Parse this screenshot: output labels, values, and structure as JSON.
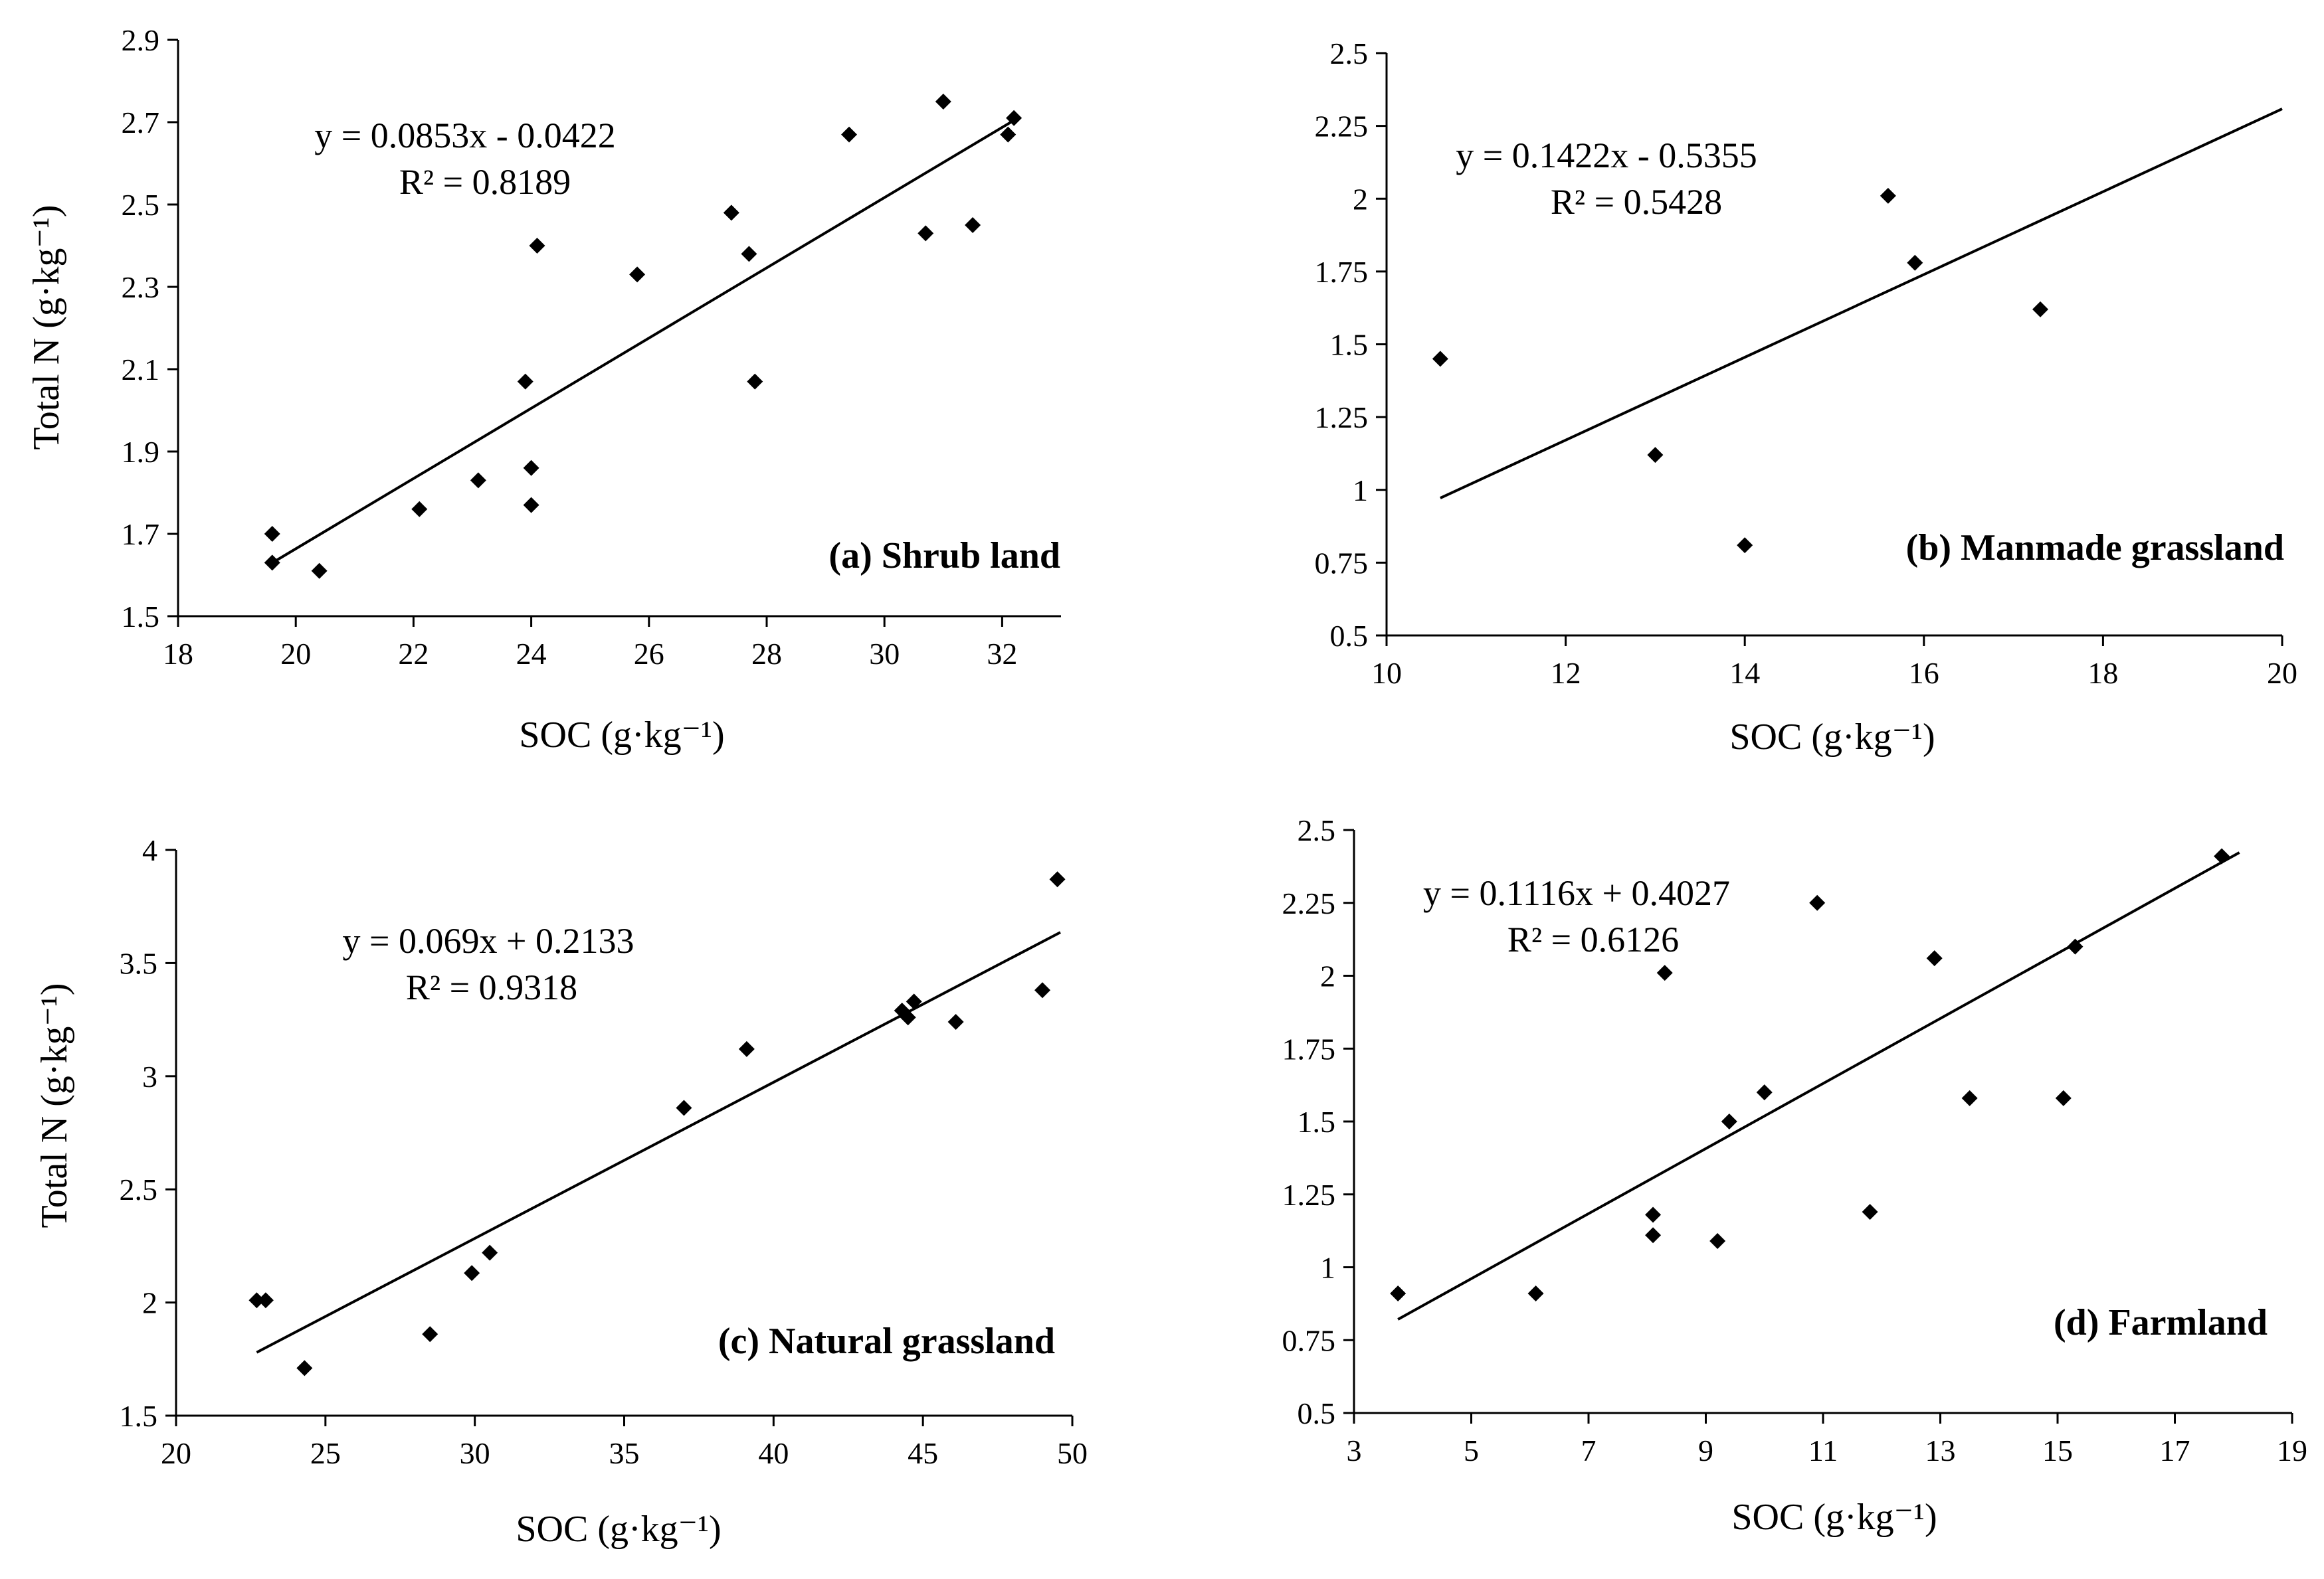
{
  "chart_data": [
    {
      "id": "a",
      "type": "scatter",
      "title": "(a) Shrub land",
      "xlabel": "SOC (g·kg⁻¹)",
      "ylabel": "Total N (g·kg⁻¹)",
      "xlim": [
        18,
        33
      ],
      "ylim": [
        1.5,
        2.9
      ],
      "xticks": [
        18,
        20,
        22,
        24,
        26,
        28,
        30,
        32
      ],
      "yticks": [
        1.5,
        1.7,
        1.9,
        2.1,
        2.3,
        2.5,
        2.7,
        2.9
      ],
      "x_tick_labels": [
        "18",
        "20",
        "22",
        "24",
        "26",
        "28",
        "30",
        "32"
      ],
      "y_tick_labels": [
        "1.5",
        "1.7",
        "1.9",
        "2.1",
        "2.3",
        "2.5",
        "2.7",
        "2.9"
      ],
      "points": [
        [
          19.6,
          1.7
        ],
        [
          19.6,
          1.63
        ],
        [
          20.4,
          1.61
        ],
        [
          22.1,
          1.76
        ],
        [
          23.1,
          1.83
        ],
        [
          23.9,
          2.07
        ],
        [
          24.0,
          1.86
        ],
        [
          24.0,
          1.77
        ],
        [
          24.1,
          2.4
        ],
        [
          25.8,
          2.33
        ],
        [
          27.4,
          2.48
        ],
        [
          27.7,
          2.38
        ],
        [
          27.8,
          2.07
        ],
        [
          29.4,
          2.67
        ],
        [
          30.7,
          2.43
        ],
        [
          31.0,
          2.75
        ],
        [
          31.5,
          2.45
        ],
        [
          32.1,
          2.67
        ],
        [
          32.2,
          2.71
        ]
      ],
      "trendline": {
        "slope": 0.0853,
        "intercept": -0.0422,
        "x_range": [
          19.6,
          32.2
        ]
      },
      "equation": "y = 0.0853x - 0.0422",
      "r2_label": "R² = 0.8189"
    },
    {
      "id": "b",
      "type": "scatter",
      "title": "(b) Manmade grassland",
      "xlabel": "SOC (g·kg⁻¹)",
      "ylabel": "",
      "xlim": [
        10,
        20
      ],
      "ylim": [
        0.5,
        2.5
      ],
      "xticks": [
        10,
        12,
        14,
        16,
        18,
        20
      ],
      "yticks": [
        0.5,
        0.75,
        1,
        1.25,
        1.5,
        1.75,
        2,
        2.25,
        2.5
      ],
      "x_tick_labels": [
        "10",
        "12",
        "14",
        "16",
        "18",
        "20"
      ],
      "y_tick_labels": [
        "0.5",
        "0.75",
        "1",
        "1.25",
        "1.5",
        "1.75",
        "2",
        "2.25",
        "2.5"
      ],
      "points": [
        [
          10.6,
          1.45
        ],
        [
          13.0,
          1.12
        ],
        [
          14.0,
          0.81
        ],
        [
          15.6,
          2.01
        ],
        [
          15.9,
          1.78
        ],
        [
          17.3,
          1.62
        ]
      ],
      "trendline": {
        "slope": 0.1422,
        "intercept": -0.5355,
        "x_range": [
          10.6,
          20
        ]
      },
      "equation": "y = 0.1422x - 0.5355",
      "r2_label": "R² = 0.5428"
    },
    {
      "id": "c",
      "type": "scatter",
      "title": "(c) Natural grassland",
      "xlabel": "SOC (g·kg⁻¹)",
      "ylabel": "Total N (g·kg⁻¹)",
      "xlim": [
        20,
        50
      ],
      "ylim": [
        1.5,
        4
      ],
      "xticks": [
        20,
        25,
        30,
        35,
        40,
        45,
        50
      ],
      "yticks": [
        1.5,
        2,
        2.5,
        3,
        3.5,
        4
      ],
      "x_tick_labels": [
        "20",
        "25",
        "30",
        "35",
        "40",
        "45",
        "50"
      ],
      "y_tick_labels": [
        "1.5",
        "2",
        "2.5",
        "3",
        "3.5",
        "4"
      ],
      "points": [
        [
          22.7,
          2.01
        ],
        [
          23.0,
          2.01
        ],
        [
          24.3,
          1.71
        ],
        [
          28.5,
          1.86
        ],
        [
          29.9,
          2.13
        ],
        [
          30.5,
          2.22
        ],
        [
          37.0,
          2.86
        ],
        [
          39.1,
          3.12
        ],
        [
          44.3,
          3.29
        ],
        [
          44.5,
          3.26
        ],
        [
          44.7,
          3.33
        ],
        [
          46.1,
          3.24
        ],
        [
          49.0,
          3.38
        ],
        [
          49.5,
          3.87
        ]
      ],
      "trendline": {
        "slope": 0.069,
        "intercept": 0.2133,
        "x_range": [
          22.7,
          49.6
        ]
      },
      "equation": "y = 0.069x + 0.2133",
      "r2_label": "R² = 0.9318"
    },
    {
      "id": "d",
      "type": "scatter",
      "title": "(d) Farmland",
      "xlabel": "SOC (g·kg⁻¹)",
      "ylabel": "",
      "xlim": [
        3,
        19
      ],
      "ylim": [
        0.5,
        2.5
      ],
      "xticks": [
        3,
        5,
        7,
        9,
        11,
        13,
        15,
        17,
        19
      ],
      "yticks": [
        0.5,
        0.75,
        1,
        1.25,
        1.5,
        1.75,
        2,
        2.25,
        2.5
      ],
      "x_tick_labels": [
        "3",
        "5",
        "7",
        "9",
        "11",
        "13",
        "15",
        "17",
        "19"
      ],
      "y_tick_labels": [
        "0.5",
        "0.75",
        "1",
        "1.25",
        "1.5",
        "1.75",
        "2",
        "2.25",
        "2.5"
      ],
      "points": [
        [
          3.75,
          0.91
        ],
        [
          6.1,
          0.91
        ],
        [
          8.1,
          1.18
        ],
        [
          8.1,
          1.11
        ],
        [
          8.3,
          2.01
        ],
        [
          9.2,
          1.09
        ],
        [
          9.4,
          1.5
        ],
        [
          10.0,
          1.6
        ],
        [
          10.9,
          2.25
        ],
        [
          11.8,
          1.19
        ],
        [
          12.9,
          2.06
        ],
        [
          13.5,
          1.58
        ],
        [
          15.1,
          1.58
        ],
        [
          15.3,
          2.1
        ],
        [
          17.8,
          2.41
        ]
      ],
      "trendline": {
        "slope": 0.1116,
        "intercept": 0.4027,
        "x_range": [
          3.75,
          18.1
        ]
      },
      "equation": "y = 0.1116x + 0.4027",
      "r2_label": "R² = 0.6126"
    }
  ]
}
